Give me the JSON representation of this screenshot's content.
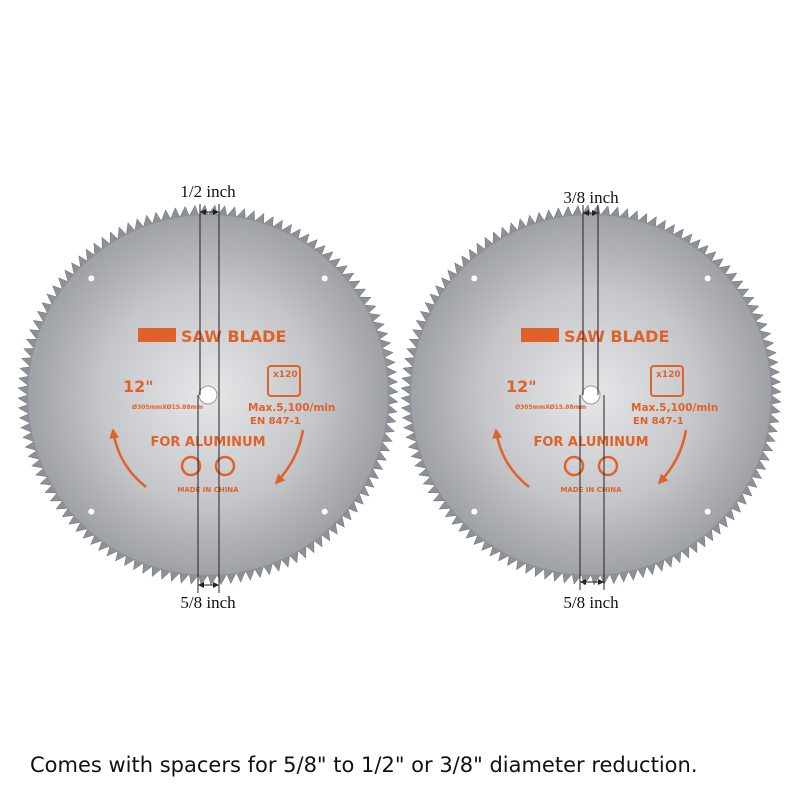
{
  "blades": [
    {
      "top_label": "1/2 inch",
      "bottom_label": "5/8 inch",
      "brand": "SAW BLADE",
      "size": "12\"",
      "spec": "Ø305mmXØ15.88mm",
      "teeth": "x120",
      "speed": "Max.5,100/min",
      "standard": "EN 847-1",
      "material": "FOR ALUMINUM",
      "origin": "MADE IN CHINA"
    },
    {
      "top_label": "3/8 inch",
      "bottom_label": "5/8 inch",
      "brand": "SAW BLADE",
      "size": "12\"",
      "spec": "Ø305mmXØ15.88mm",
      "teeth": "x120",
      "speed": "Max.5,100/min",
      "standard": "EN 847-1",
      "material": "FOR ALUMINUM",
      "origin": "MADE IN CHINA"
    }
  ],
  "caption": "Comes with spacers for 5/8\" to 1/2\" or 3/8\" diameter reduction."
}
